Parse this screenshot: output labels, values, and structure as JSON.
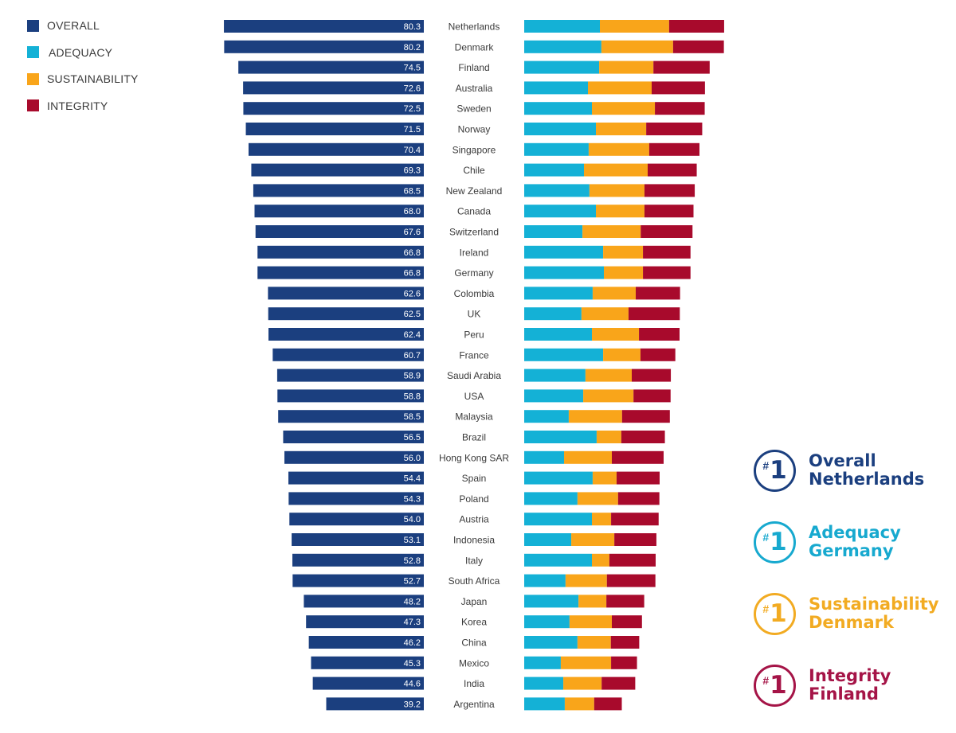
{
  "legend": [
    {
      "key": "overall",
      "label": "OVERALL",
      "color": "#1b3f7f"
    },
    {
      "key": "adequacy",
      "label": "ADEQUACY",
      "color": "#14b1d6"
    },
    {
      "key": "sustainability",
      "label": "SUSTAINABILITY",
      "color": "#f9a51a"
    },
    {
      "key": "integrity",
      "label": "INTEGRITY",
      "color": "#a80a2c"
    }
  ],
  "badges": [
    {
      "hash": "#",
      "rank": "1",
      "category": "Overall",
      "country": "Netherlands",
      "color": "#1b3f7f"
    },
    {
      "hash": "#",
      "rank": "1",
      "category": "Adequacy",
      "country": "Germany",
      "color": "#17a9cf"
    },
    {
      "hash": "#",
      "rank": "1",
      "category": "Sustainability",
      "country": "Denmark",
      "color": "#f2ab22"
    },
    {
      "hash": "#",
      "rank": "1",
      "category": "Integrity",
      "country": "Finland",
      "color": "#a51447"
    }
  ],
  "chart_data": {
    "type": "bar",
    "title": "",
    "xlabel": "",
    "ylabel": "",
    "xlim": [
      0,
      85
    ],
    "grid": false,
    "legend_position": "top-left",
    "categories": [
      "Netherlands",
      "Denmark",
      "Finland",
      "Australia",
      "Sweden",
      "Norway",
      "Singapore",
      "Chile",
      "New Zealand",
      "Canada",
      "Switzerland",
      "Ireland",
      "Germany",
      "Colombia",
      "UK",
      "Peru",
      "France",
      "Saudi Arabia",
      "USA",
      "Malaysia",
      "Brazil",
      "Hong Kong SAR",
      "Spain",
      "Poland",
      "Austria",
      "Indonesia",
      "Italy",
      "South Africa",
      "Japan",
      "Korea",
      "China",
      "Mexico",
      "India",
      "Argentina"
    ],
    "overall": {
      "name": "OVERALL",
      "value_labels": [
        "80.3",
        "80.2",
        "74.5",
        "72.6",
        "72.5",
        "71.5",
        "70.4",
        "69.3",
        "68.5",
        "68.0",
        "67.6",
        "66.8",
        "66.8",
        "62.6",
        "62.5",
        "62.4",
        "60.7",
        "58.9",
        "58.8",
        "58.5",
        "56.5",
        "56.0",
        "54.4",
        "54.3",
        "54.0",
        "53.1",
        "52.8",
        "52.7",
        "48.2",
        "47.3",
        "46.2",
        "45.3",
        "44.6",
        "39.2"
      ],
      "values": [
        80.3,
        80.2,
        74.5,
        72.6,
        72.5,
        71.5,
        70.4,
        69.3,
        68.5,
        68.0,
        67.6,
        66.8,
        66.8,
        62.6,
        62.5,
        62.4,
        60.7,
        58.9,
        58.8,
        58.5,
        56.5,
        56.0,
        54.4,
        54.3,
        54.0,
        53.1,
        52.8,
        52.7,
        48.2,
        47.3,
        46.2,
        45.3,
        44.6,
        39.2
      ]
    },
    "stacked_type": "stacked_bar",
    "series": [
      {
        "name": "ADEQUACY",
        "values": [
          30.4,
          31.0,
          30.1,
          25.6,
          27.2,
          28.8,
          25.9,
          24.0,
          26.2,
          28.8,
          23.4,
          31.7,
          32.0,
          27.5,
          23.0,
          27.2,
          31.7,
          24.6,
          23.7,
          17.9,
          29.1,
          16.0,
          27.5,
          21.4,
          27.2,
          18.9,
          27.2,
          16.6,
          21.8,
          18.2,
          21.4,
          14.7,
          15.7,
          16.3
        ]
      },
      {
        "name": "SUSTAINABILITY",
        "values": [
          27.8,
          28.8,
          21.8,
          25.6,
          25.3,
          20.2,
          24.3,
          25.6,
          22.1,
          19.5,
          23.4,
          16.0,
          15.7,
          17.3,
          18.9,
          18.9,
          15.0,
          18.6,
          20.2,
          21.4,
          9.9,
          19.2,
          9.6,
          16.3,
          7.7,
          17.3,
          7.0,
          16.6,
          11.2,
          17.0,
          13.4,
          20.2,
          15.4,
          11.8
        ]
      },
      {
        "name": "INTEGRITY",
        "values": [
          22.1,
          20.4,
          22.6,
          21.4,
          20.0,
          22.5,
          20.2,
          19.7,
          20.2,
          19.7,
          20.8,
          19.1,
          19.1,
          17.8,
          20.6,
          16.3,
          14.0,
          15.7,
          14.9,
          19.2,
          17.5,
          20.8,
          17.3,
          16.6,
          19.1,
          16.9,
          18.6,
          19.5,
          15.2,
          12.1,
          11.4,
          10.4,
          13.5,
          11.1
        ]
      }
    ]
  }
}
